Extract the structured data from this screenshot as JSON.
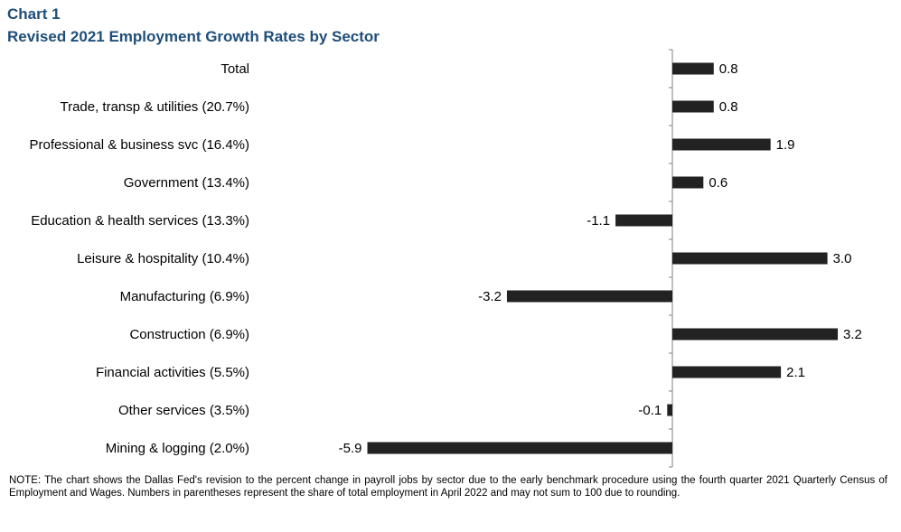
{
  "header": {
    "label": "Chart 1",
    "title": "Revised 2021 Employment Growth Rates by Sector"
  },
  "chart_data": {
    "type": "bar",
    "orientation": "horizontal",
    "categories": [
      "Total",
      "Trade, transp & utilities (20.7%)",
      "Professional & business svc (16.4%)",
      "Government (13.4%)",
      "Education & health services (13.3%)",
      "Leisure & hospitality (10.4%)",
      "Manufacturing (6.9%)",
      "Construction (6.9%)",
      "Financial activities (5.5%)",
      "Other services (3.5%)",
      "Mining & logging (2.0%)"
    ],
    "values": [
      0.8,
      0.8,
      1.9,
      0.6,
      -1.1,
      3.0,
      -3.2,
      3.2,
      2.1,
      -0.1,
      -5.9
    ],
    "value_labels": [
      "0.8",
      "0.8",
      "1.9",
      "0.6",
      "-1.1",
      "3.0",
      "-3.2",
      "3.2",
      "2.1",
      "-0.1",
      "-5.9"
    ],
    "xlim": [
      -5.9,
      3.2
    ],
    "bar_color": "#222222",
    "grid": false,
    "legend": "none",
    "title": "Revised 2021 Employment Growth Rates by Sector",
    "xlabel": "",
    "ylabel": ""
  },
  "note": "NOTE: The chart shows the Dallas Fed's revision to the percent change in payroll jobs by sector due to the early benchmark procedure using the fourth quarter 2021 Quarterly Census of Employment and Wages. Numbers in parentheses represent the share of total employment in April 2022 and may not sum to 100 due to rounding."
}
